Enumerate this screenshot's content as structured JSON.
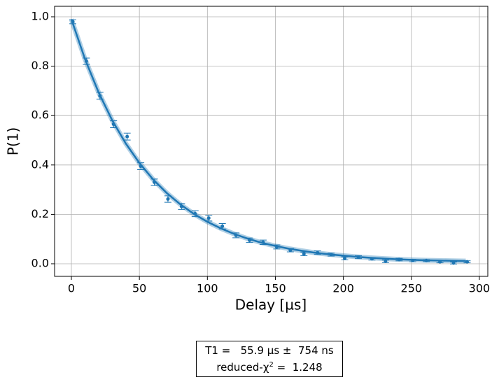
{
  "chart_data": {
    "type": "scatter",
    "xlabel": "Delay [µs]",
    "ylabel": "P(1)",
    "x": [
      1,
      11,
      21,
      31,
      41,
      51,
      61,
      71,
      81,
      91,
      101,
      111,
      121,
      131,
      141,
      151,
      161,
      171,
      181,
      191,
      201,
      211,
      221,
      231,
      241,
      251,
      261,
      271,
      281,
      291
    ],
    "values": [
      0.98,
      0.82,
      0.68,
      0.565,
      0.515,
      0.395,
      0.33,
      0.262,
      0.232,
      0.203,
      0.185,
      0.152,
      0.115,
      0.095,
      0.087,
      0.068,
      0.055,
      0.04,
      0.045,
      0.037,
      0.022,
      0.027,
      0.02,
      0.01,
      0.017,
      0.013,
      0.013,
      0.008,
      0.003,
      0.008
    ],
    "errors": [
      0.008,
      0.013,
      0.014,
      0.014,
      0.014,
      0.014,
      0.013,
      0.013,
      0.012,
      0.012,
      0.012,
      0.011,
      0.01,
      0.009,
      0.009,
      0.008,
      0.007,
      0.007,
      0.007,
      0.006,
      0.006,
      0.006,
      0.005,
      0.005,
      0.005,
      0.005,
      0.004,
      0.004,
      0.004,
      0.004
    ],
    "fit": {
      "x": [
        0,
        10,
        20,
        30,
        40,
        50,
        60,
        70,
        80,
        90,
        100,
        110,
        120,
        130,
        140,
        150,
        160,
        170,
        180,
        190,
        200,
        210,
        220,
        230,
        240,
        250,
        260,
        270,
        280,
        290
      ],
      "values": [
        0.99,
        0.829,
        0.694,
        0.581,
        0.487,
        0.408,
        0.342,
        0.287,
        0.241,
        0.202,
        0.17,
        0.143,
        0.12,
        0.101,
        0.085,
        0.072,
        0.061,
        0.052,
        0.044,
        0.038,
        0.033,
        0.028,
        0.024,
        0.021,
        0.018,
        0.016,
        0.014,
        0.013,
        0.012,
        0.011
      ]
    },
    "color": "#1f77b4",
    "xlim": [
      -12.35,
      306.2
    ],
    "ylim": [
      -0.051,
      1.0425
    ],
    "xticks": [
      0,
      50,
      100,
      150,
      200,
      250,
      300
    ],
    "yticks": [
      {
        "value": 0,
        "label": "0.0"
      },
      0.2,
      0.4,
      0.6,
      0.8,
      {
        "value": 1,
        "label": "1.0"
      }
    ],
    "grid": true,
    "annotation": {
      "line1": "T1 =   55.9 µs ±  754 ns",
      "line2_prefix": "reduced-χ",
      "line2_sup": "2",
      "line2_suffix": " =  1.248"
    }
  }
}
